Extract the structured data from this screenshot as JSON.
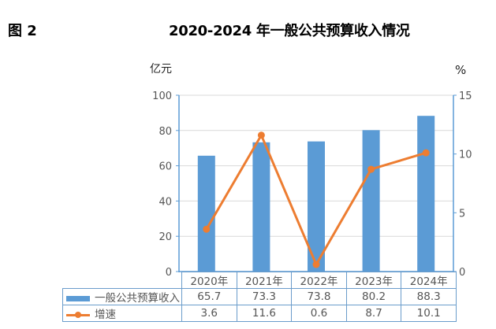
{
  "figure_label": "图 2",
  "title": "2020-2024 年一般公共预算收入情况",
  "colors": {
    "bar": "#5b9bd5",
    "line": "#ed7d31",
    "axis": "#5b9bd5",
    "grid": "#d9d9d9"
  },
  "chart_data": {
    "type": "bar",
    "title": "2020-2024 年一般公共预算收入情况",
    "categories": [
      "2020年",
      "2021年",
      "2022年",
      "2023年",
      "2024年"
    ],
    "series": [
      {
        "name": "一般公共预算收入",
        "type": "bar",
        "axis": "left",
        "values": [
          65.7,
          73.3,
          73.8,
          80.2,
          88.3
        ]
      },
      {
        "name": "增速",
        "type": "line",
        "axis": "right",
        "values": [
          3.6,
          11.6,
          0.6,
          8.7,
          10.1
        ]
      }
    ],
    "ylabel": "亿元",
    "y2label": "%",
    "ylim": [
      0,
      100
    ],
    "y2lim": [
      0,
      15
    ],
    "yticks": [
      0,
      20,
      40,
      60,
      80,
      100
    ],
    "y2ticks": [
      0,
      5,
      10,
      15
    ],
    "grid": true,
    "legend_position": "data-table-bottom"
  },
  "table": {
    "rows": [
      {
        "label": "一般公共预算收入",
        "values": [
          "65.7",
          "73.3",
          "73.8",
          "80.2",
          "88.3"
        ]
      },
      {
        "label": "增速",
        "values": [
          "3.6",
          "11.6",
          "0.6",
          "8.7",
          "10.1"
        ]
      }
    ]
  }
}
